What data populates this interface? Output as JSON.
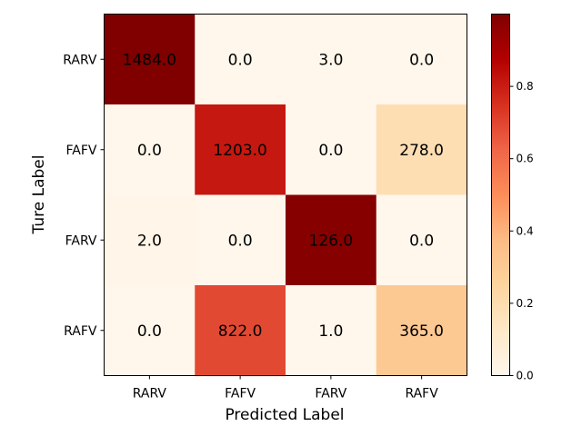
{
  "chart_data": {
    "type": "heatmap",
    "title": "",
    "xlabel": "Predicted Label",
    "ylabel": "Ture Label",
    "x_categories": [
      "RARV",
      "FAFV",
      "FARV",
      "RAFV"
    ],
    "y_categories": [
      "RARV",
      "FAFV",
      "FARV",
      "RAFV"
    ],
    "values": [
      [
        1484.0,
        0.0,
        3.0,
        0.0
      ],
      [
        0.0,
        1203.0,
        0.0,
        278.0
      ],
      [
        2.0,
        0.0,
        126.0,
        0.0
      ],
      [
        0.0,
        822.0,
        1.0,
        365.0
      ]
    ],
    "value_labels": [
      [
        "1484.0",
        "0.0",
        "3.0",
        "0.0"
      ],
      [
        "0.0",
        "1203.0",
        "0.0",
        "278.0"
      ],
      [
        "2.0",
        "0.0",
        "126.0",
        "0.0"
      ],
      [
        "0.0",
        "822.0",
        "1.0",
        "365.0"
      ]
    ],
    "colormap": "OrRd",
    "colorbar": {
      "range": [
        0.0,
        1.0
      ],
      "ticks": [
        0.0,
        0.2,
        0.4,
        0.6,
        0.8
      ],
      "tick_labels": [
        "0.0",
        "0.2",
        "0.4",
        "0.6",
        "0.8"
      ]
    }
  }
}
